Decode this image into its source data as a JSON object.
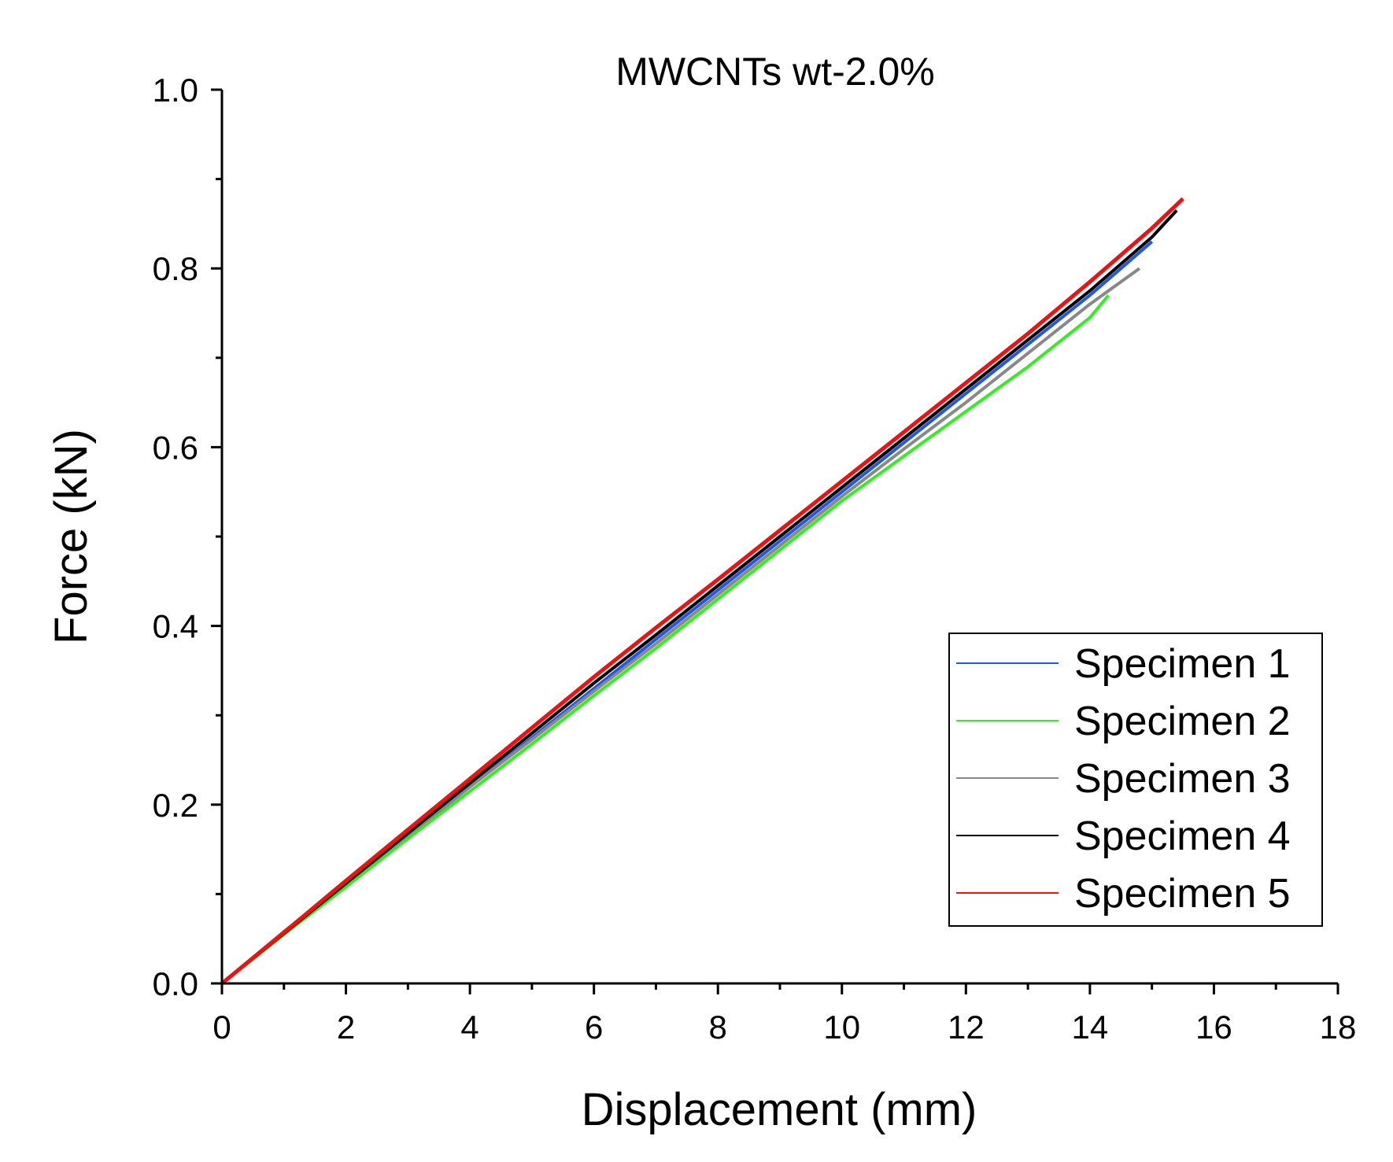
{
  "chart_data": {
    "type": "line",
    "title": "MWCNTs wt-2.0%",
    "xlabel": "Displacement (mm)",
    "ylabel": "Force (kN)",
    "xlim": [
      0,
      18
    ],
    "ylim": [
      0,
      1.0
    ],
    "xticks": [
      0,
      2,
      4,
      6,
      8,
      10,
      12,
      14,
      16,
      18
    ],
    "xtick_labels": [
      "0",
      "2",
      "4",
      "6",
      "8",
      "10",
      "12",
      "14",
      "16",
      "18"
    ],
    "yticks": [
      0.0,
      0.2,
      0.4,
      0.6,
      0.8,
      1.0
    ],
    "ytick_labels": [
      "0.0",
      "0.2",
      "0.4",
      "0.6",
      "0.8",
      "1.0"
    ],
    "grid": false,
    "legend_position": "bottom-right",
    "series": [
      {
        "name": "Specimen 1",
        "color": "#2255ee",
        "x": [
          0,
          1,
          2,
          3,
          4,
          5,
          6,
          7,
          8,
          9,
          10,
          11,
          12,
          13,
          14,
          15
        ],
        "y": [
          0.0,
          0.055,
          0.11,
          0.165,
          0.22,
          0.275,
          0.33,
          0.385,
          0.44,
          0.495,
          0.55,
          0.605,
          0.66,
          0.715,
          0.77,
          0.83
        ]
      },
      {
        "name": "Specimen 2",
        "color": "#33ee22",
        "x": [
          0,
          1,
          2,
          3,
          4,
          5,
          6,
          7,
          8,
          9,
          10,
          11,
          12,
          13,
          14,
          14.3
        ],
        "y": [
          0.0,
          0.055,
          0.108,
          0.162,
          0.215,
          0.268,
          0.322,
          0.375,
          0.43,
          0.485,
          0.54,
          0.59,
          0.64,
          0.69,
          0.745,
          0.77
        ]
      },
      {
        "name": "Specimen 3",
        "color": "#888888",
        "x": [
          0,
          1,
          2,
          3,
          4,
          5,
          6,
          7,
          8,
          9,
          10,
          11,
          12,
          13,
          14,
          14.8
        ],
        "y": [
          0.0,
          0.058,
          0.112,
          0.166,
          0.22,
          0.273,
          0.327,
          0.38,
          0.435,
          0.49,
          0.545,
          0.598,
          0.65,
          0.705,
          0.76,
          0.8
        ]
      },
      {
        "name": "Specimen 4",
        "color": "#000000",
        "x": [
          0,
          1,
          2,
          3,
          4,
          5,
          6,
          7,
          8,
          9,
          10,
          11,
          12,
          13,
          14,
          15,
          15.4
        ],
        "y": [
          0.0,
          0.056,
          0.112,
          0.168,
          0.224,
          0.28,
          0.336,
          0.39,
          0.445,
          0.5,
          0.555,
          0.61,
          0.665,
          0.72,
          0.775,
          0.835,
          0.865
        ]
      },
      {
        "name": "Specimen 5",
        "color": "#ee1111",
        "x": [
          0,
          1,
          2,
          3,
          4,
          5,
          6,
          7,
          8,
          9,
          10,
          11,
          12,
          13,
          14,
          15,
          15.5
        ],
        "y": [
          0.0,
          0.057,
          0.115,
          0.172,
          0.229,
          0.286,
          0.343,
          0.398,
          0.452,
          0.507,
          0.562,
          0.617,
          0.672,
          0.727,
          0.785,
          0.845,
          0.878
        ]
      }
    ]
  }
}
